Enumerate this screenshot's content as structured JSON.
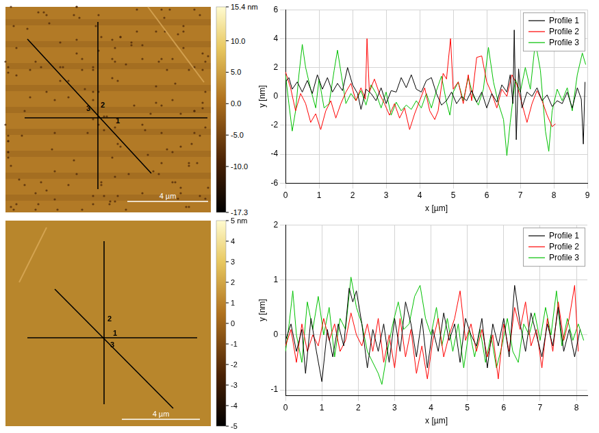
{
  "chart_data": [
    {
      "type": "image",
      "colorbar": {
        "range": [
          -17.3,
          15.4
        ],
        "ticks": [
          {
            "value": 15.4,
            "label": "15.4 nm"
          },
          {
            "value": 10,
            "label": "10.0"
          },
          {
            "value": 5,
            "label": "5.0"
          },
          {
            "value": 0,
            "label": "0.0"
          },
          {
            "value": -5,
            "label": "-5.0"
          },
          {
            "value": -10,
            "label": "-10.0"
          },
          {
            "value": -17.3,
            "label": "-17.3"
          }
        ]
      },
      "scale_bar": "4 µm",
      "profile_labels": [
        "1",
        "2",
        "3"
      ]
    },
    {
      "type": "line",
      "xlabel": "x [µm]",
      "ylabel": "y [nm]",
      "xlim": [
        0,
        9
      ],
      "xticks": [
        0,
        1,
        2,
        3,
        4,
        5,
        6,
        7,
        8,
        9
      ],
      "ylim": [
        -6,
        6
      ],
      "yticks": [
        -6,
        -4,
        -2,
        0,
        2,
        4,
        6
      ],
      "grid": true,
      "legend": "upper right",
      "series": [
        {
          "name": "Profile 1",
          "color": "#000000",
          "x": [
            0,
            0.1,
            0.2,
            0.35,
            0.5,
            0.65,
            0.8,
            0.95,
            1.1,
            1.25,
            1.4,
            1.55,
            1.7,
            1.85,
            2.0,
            2.15,
            2.25,
            2.4,
            2.55,
            2.7,
            2.85,
            3.0,
            3.15,
            3.3,
            3.45,
            3.6,
            3.75,
            3.9,
            4.05,
            4.2,
            4.35,
            4.5,
            4.65,
            4.8,
            4.95,
            5.1,
            5.25,
            5.4,
            5.55,
            5.7,
            5.85,
            6.0,
            6.15,
            6.3,
            6.45,
            6.6,
            6.7,
            6.78,
            6.82,
            6.88,
            6.95,
            7.05,
            7.2,
            7.35,
            7.5,
            7.65,
            7.8,
            7.95,
            8.1,
            8.25,
            8.4,
            8.55,
            8.7,
            8.82,
            8.88,
            8.93
          ],
          "values": [
            1.0,
            1.3,
            0.5,
            1.0,
            0.3,
            1.1,
            0.2,
            1.5,
            0.5,
            1.3,
            0.3,
            0.9,
            0.4,
            2.0,
            0.8,
            0.2,
            -0.9,
            0.5,
            0.2,
            -0.3,
            0.6,
            -0.5,
            0.4,
            0.3,
            1.3,
            0.6,
            1.5,
            0.5,
            0.3,
            1.1,
            1.3,
            0.2,
            -0.6,
            -0.3,
            0.3,
            -0.5,
            0.0,
            -0.3,
            0.4,
            -0.4,
            0.3,
            -0.8,
            0.2,
            -0.4,
            0.8,
            0.3,
            1.5,
            -0.5,
            4.6,
            -3.0,
            1.9,
            -0.8,
            0.3,
            0.0,
            0.6,
            -0.3,
            0.1,
            -0.7,
            -0.3,
            -0.5,
            0.3,
            -0.8,
            0.6,
            -0.2,
            -3.3,
            1.0
          ]
        },
        {
          "name": "Profile 2",
          "color": "#ff0000",
          "x": [
            0,
            0.15,
            0.3,
            0.45,
            0.6,
            0.75,
            0.9,
            1.05,
            1.2,
            1.35,
            1.5,
            1.65,
            1.8,
            1.95,
            2.1,
            2.25,
            2.38,
            2.43,
            2.5,
            2.65,
            2.8,
            2.95,
            3.1,
            3.25,
            3.4,
            3.55,
            3.7,
            3.85,
            4.0,
            4.15,
            4.3,
            4.45,
            4.55,
            4.7,
            4.8,
            4.92,
            5.0,
            5.15,
            5.3,
            5.45,
            5.55,
            5.7,
            5.85,
            6.0,
            6.15,
            6.3,
            6.45,
            6.6,
            6.75,
            6.9,
            7.05,
            7.2,
            7.35,
            7.5,
            7.65,
            7.8,
            7.95,
            8.05
          ],
          "values": [
            1.7,
            0.6,
            -1.0,
            0.2,
            -0.5,
            -1.8,
            -1.2,
            -2.3,
            -1.0,
            -0.3,
            -1.5,
            -0.5,
            0.3,
            0.9,
            -0.3,
            0.6,
            -0.2,
            4.0,
            0.3,
            1.2,
            0.2,
            -0.5,
            -1.3,
            -0.5,
            -1.5,
            -0.8,
            -2.3,
            -1.2,
            -0.3,
            0.6,
            -1.0,
            -1.6,
            -1.0,
            1.6,
            1.2,
            4.0,
            0.5,
            1.0,
            -0.5,
            1.5,
            -0.3,
            2.7,
            2.8,
            1.0,
            0.2,
            -0.8,
            0.5,
            0.0,
            1.5,
            0.8,
            -0.5,
            -1.8,
            -0.5,
            0.4,
            -0.3,
            -1.3,
            -2.1,
            -1.9
          ]
        },
        {
          "name": "Profile 3",
          "color": "#00c000",
          "x": [
            0,
            0.1,
            0.2,
            0.3,
            0.4,
            0.5,
            0.6,
            0.75,
            0.9,
            1.0,
            1.15,
            1.3,
            1.45,
            1.55,
            1.65,
            1.8,
            1.95,
            2.1,
            2.25,
            2.4,
            2.55,
            2.7,
            2.85,
            3.0,
            3.15,
            3.3,
            3.45,
            3.6,
            3.75,
            3.9,
            4.05,
            4.2,
            4.35,
            4.5,
            4.65,
            4.8,
            4.9,
            5.0,
            5.15,
            5.3,
            5.45,
            5.6,
            5.75,
            5.9,
            6.05,
            6.2,
            6.35,
            6.5,
            6.6,
            6.7,
            6.85,
            7.0,
            7.15,
            7.3,
            7.45,
            7.6,
            7.75,
            7.85,
            7.95,
            8.1,
            8.25,
            8.4,
            8.55,
            8.7,
            8.85,
            8.95
          ],
          "values": [
            1.5,
            -0.5,
            -2.4,
            -1.0,
            1.5,
            3.6,
            2.0,
            0.5,
            -0.8,
            1.2,
            -0.8,
            -0.5,
            1.8,
            3.2,
            1.7,
            -0.5,
            0.2,
            -0.3,
            0.4,
            -0.6,
            0.8,
            0.2,
            -0.8,
            0.3,
            -1.3,
            -0.4,
            -1.0,
            -0.6,
            -0.9,
            -0.3,
            -0.8,
            0.2,
            -0.8,
            0.4,
            1.4,
            -0.4,
            -1.3,
            0.3,
            1.0,
            -0.3,
            1.3,
            0.0,
            -0.6,
            0.5,
            3.4,
            1.0,
            -0.5,
            -1.6,
            -4.1,
            -1.8,
            1.2,
            0.3,
            2.0,
            0.5,
            3.8,
            1.8,
            -2.4,
            -3.8,
            -1.0,
            0.5,
            -0.3,
            0.6,
            -1.0,
            1.5,
            3.0,
            2.2
          ]
        }
      ]
    },
    {
      "type": "image",
      "colorbar": {
        "range": [
          -5,
          5
        ],
        "ticks": [
          {
            "value": 5,
            "label": "5 nm"
          },
          4,
          3,
          2,
          1,
          0,
          -1,
          -2,
          -3,
          -4,
          -5
        ]
      },
      "scale_bar": "4 µm",
      "profile_labels": [
        "1",
        "2",
        "3"
      ]
    },
    {
      "type": "line",
      "xlabel": "x [µm]",
      "ylabel": "y [nm]",
      "xlim": [
        0,
        8.3
      ],
      "xticks": [
        0,
        1,
        2,
        3,
        4,
        5,
        6,
        7,
        8
      ],
      "ylim": [
        -1.1,
        2
      ],
      "yticks": [
        -1,
        0,
        1,
        2
      ],
      "grid": true,
      "legend": "upper right",
      "series": [
        {
          "name": "Profile 1",
          "color": "#000000",
          "x": [
            0,
            0.15,
            0.3,
            0.45,
            0.55,
            0.7,
            0.85,
            1.0,
            1.15,
            1.3,
            1.45,
            1.6,
            1.75,
            1.85,
            1.95,
            2.1,
            2.25,
            2.4,
            2.55,
            2.7,
            2.85,
            3.0,
            3.15,
            3.3,
            3.45,
            3.6,
            3.75,
            3.9,
            4.05,
            4.2,
            4.35,
            4.5,
            4.65,
            4.8,
            4.95,
            5.1,
            5.25,
            5.4,
            5.55,
            5.7,
            5.85,
            6.0,
            6.15,
            6.3,
            6.45,
            6.6,
            6.75,
            6.9,
            7.05,
            7.2,
            7.35,
            7.5,
            7.65,
            7.8,
            7.95,
            8.1
          ],
          "values": [
            -0.1,
            0.2,
            -0.3,
            0.1,
            -0.7,
            0.3,
            -0.3,
            -0.85,
            0.1,
            -0.4,
            0.2,
            -0.2,
            0.85,
            0.6,
            0.8,
            0.2,
            -0.6,
            0.1,
            -0.3,
            0.2,
            -0.5,
            0.3,
            -0.3,
            0.6,
            0.2,
            -0.4,
            0.3,
            -0.6,
            0.1,
            -0.3,
            0.4,
            -0.1,
            0.2,
            -0.5,
            0.3,
            0.0,
            -0.2,
            0.3,
            -0.6,
            0.2,
            -0.2,
            0.3,
            -0.4,
            0.9,
            0.2,
            -0.3,
            0.4,
            0.0,
            -0.4,
            0.2,
            -0.2,
            0.5,
            -0.3,
            0.1,
            -0.4,
            0.1
          ]
        },
        {
          "name": "Profile 2",
          "color": "#ff0000",
          "x": [
            0,
            0.15,
            0.3,
            0.45,
            0.6,
            0.75,
            0.9,
            1.05,
            1.2,
            1.35,
            1.5,
            1.65,
            1.8,
            1.95,
            2.1,
            2.25,
            2.4,
            2.55,
            2.7,
            2.85,
            3.0,
            3.15,
            3.3,
            3.45,
            3.6,
            3.75,
            3.9,
            4.05,
            4.2,
            4.35,
            4.5,
            4.65,
            4.8,
            4.95,
            5.1,
            5.25,
            5.4,
            5.55,
            5.7,
            5.85,
            6.0,
            6.15,
            6.3,
            6.45,
            6.6,
            6.75,
            6.9,
            7.05,
            7.2,
            7.35,
            7.5,
            7.65,
            7.8,
            7.95,
            8.05
          ],
          "values": [
            -0.2,
            0.1,
            -0.5,
            0.2,
            -0.3,
            0.0,
            -0.2,
            0.3,
            -0.1,
            0.2,
            -0.3,
            -0.1,
            0.4,
            0.0,
            -0.2,
            0.2,
            -0.3,
            0.3,
            -0.5,
            0.0,
            -0.6,
            0.3,
            -0.4,
            0.1,
            -0.7,
            -0.2,
            -0.8,
            -0.1,
            0.3,
            -0.4,
            0.0,
            0.3,
            0.8,
            -0.1,
            0.2,
            -0.3,
            0.1,
            -0.4,
            0.0,
            -0.8,
            0.2,
            -0.3,
            0.5,
            0.1,
            0.6,
            -0.2,
            0.1,
            -0.6,
            0.3,
            -0.3,
            0.6,
            -0.1,
            0.3,
            0.9,
            -0.3
          ]
        },
        {
          "name": "Profile 3",
          "color": "#00c000",
          "x": [
            0,
            0.1,
            0.2,
            0.3,
            0.45,
            0.6,
            0.75,
            0.9,
            1.05,
            1.2,
            1.35,
            1.5,
            1.65,
            1.8,
            1.95,
            2.1,
            2.25,
            2.4,
            2.55,
            2.65,
            2.8,
            2.95,
            3.1,
            3.25,
            3.4,
            3.55,
            3.7,
            3.85,
            4.0,
            4.15,
            4.3,
            4.45,
            4.6,
            4.75,
            4.9,
            5.05,
            5.2,
            5.35,
            5.5,
            5.65,
            5.8,
            5.95,
            6.1,
            6.25,
            6.4,
            6.55,
            6.7,
            6.85,
            7.0,
            7.15,
            7.3,
            7.45,
            7.6,
            7.75,
            7.9,
            8.05,
            8.2
          ],
          "values": [
            -0.3,
            0.2,
            0.8,
            0.0,
            -0.5,
            0.6,
            0.1,
            0.7,
            0.0,
            0.5,
            -0.4,
            0.3,
            0.1,
            1.05,
            0.5,
            0.2,
            -0.3,
            -0.5,
            -0.7,
            -0.9,
            -0.3,
            0.2,
            0.6,
            0.1,
            0.2,
            0.7,
            0.9,
            0.3,
            0.0,
            0.5,
            -0.2,
            0.3,
            -0.3,
            0.2,
            -0.6,
            0.1,
            -0.4,
            0.1,
            -0.5,
            0.0,
            -0.6,
            -0.2,
            0.3,
            -0.3,
            -0.5,
            0.2,
            0.0,
            0.4,
            -0.1,
            0.5,
            0.0,
            0.8,
            -0.2,
            0.3,
            -0.1,
            0.2,
            -0.1
          ]
        }
      ]
    }
  ]
}
